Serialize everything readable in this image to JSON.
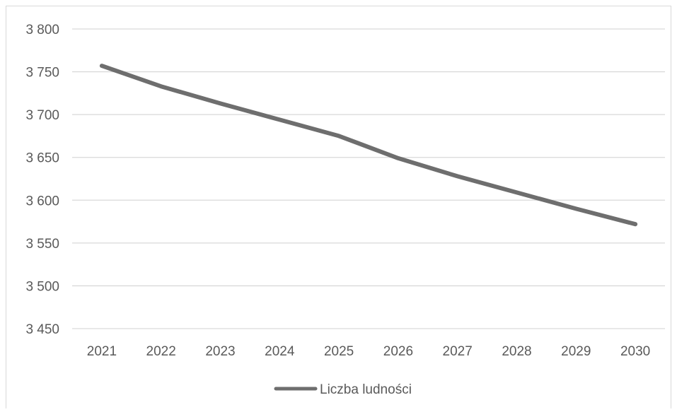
{
  "chart_data": {
    "type": "line",
    "categories": [
      "2021",
      "2022",
      "2023",
      "2024",
      "2025",
      "2026",
      "2027",
      "2028",
      "2029",
      "2030"
    ],
    "series": [
      {
        "name": "Liczba ludności",
        "values": [
          3757,
          3733,
          3713,
          3694,
          3675,
          3649,
          3628,
          3609,
          3590,
          3572
        ],
        "color": "#6e6e6e"
      }
    ],
    "yticks": [
      "3 800",
      "3 750",
      "3 700",
      "3 650",
      "3 600",
      "3 550",
      "3 500",
      "3 450"
    ],
    "ylim": [
      3450,
      3800
    ],
    "grid": true,
    "gridColor": "#d9d9d9",
    "legend": "bottom"
  }
}
